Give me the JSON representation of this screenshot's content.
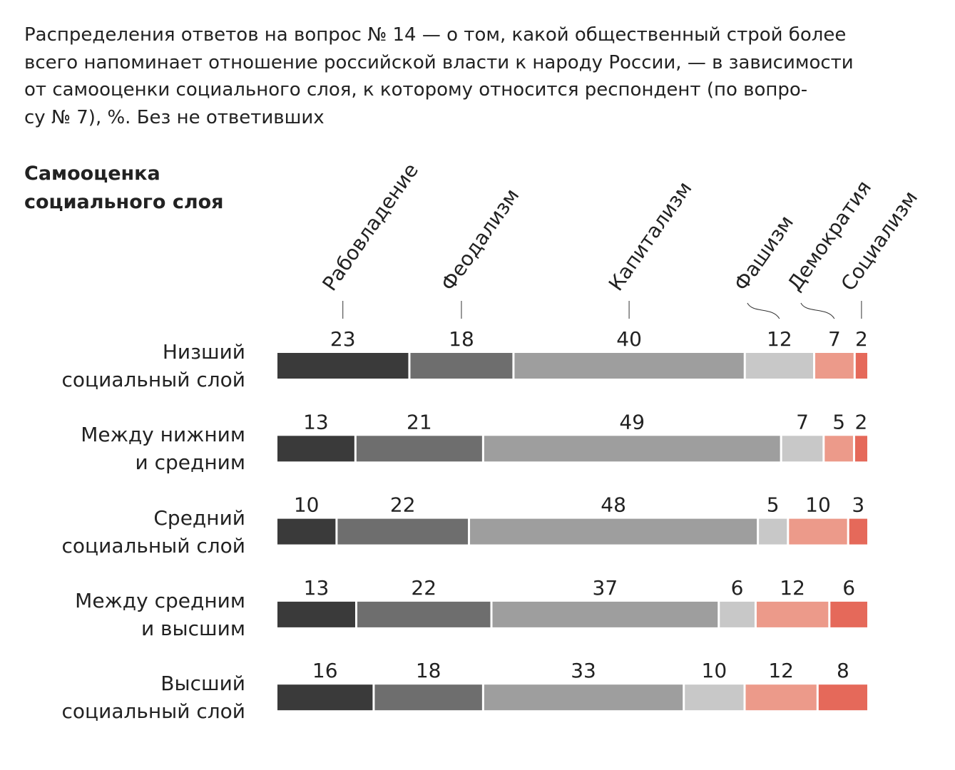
{
  "chart_data": {
    "type": "stacked-bar-100",
    "title": "Распределения ответов на вопрос № 14 — о том, какой общественный строй более\nвсего напоминает отношение российской власти к народу России, — в зависимости\nот самооценки социального слоя, к которому относится респондент (по вопро-\nсу № 7), %. Без не ответивших",
    "y_label": "Самооценка\nсоциального слоя",
    "categories": [
      "Низший\nсоциальный слой",
      "Между нижним\nи средним",
      "Средний\nсоциальный слой",
      "Между средним\nи высшим",
      "Высший\nсоциальный слой"
    ],
    "series": [
      {
        "name": "Рабовладение",
        "color": "#3a3a3a",
        "values": [
          23,
          13,
          10,
          13,
          16
        ]
      },
      {
        "name": "Феодализм",
        "color": "#6e6e6e",
        "values": [
          18,
          21,
          22,
          22,
          18
        ]
      },
      {
        "name": "Капитализм",
        "color": "#9e9e9e",
        "values": [
          40,
          49,
          48,
          37,
          33
        ]
      },
      {
        "name": "Фашизм",
        "color": "#c8c8c8",
        "values": [
          12,
          7,
          5,
          6,
          10
        ]
      },
      {
        "name": "Демократия",
        "color": "#ec9a8a",
        "values": [
          7,
          5,
          10,
          12,
          12
        ]
      },
      {
        "name": "Социализм",
        "color": "#e5695a",
        "values": [
          2,
          2,
          3,
          6,
          8
        ]
      }
    ]
  }
}
